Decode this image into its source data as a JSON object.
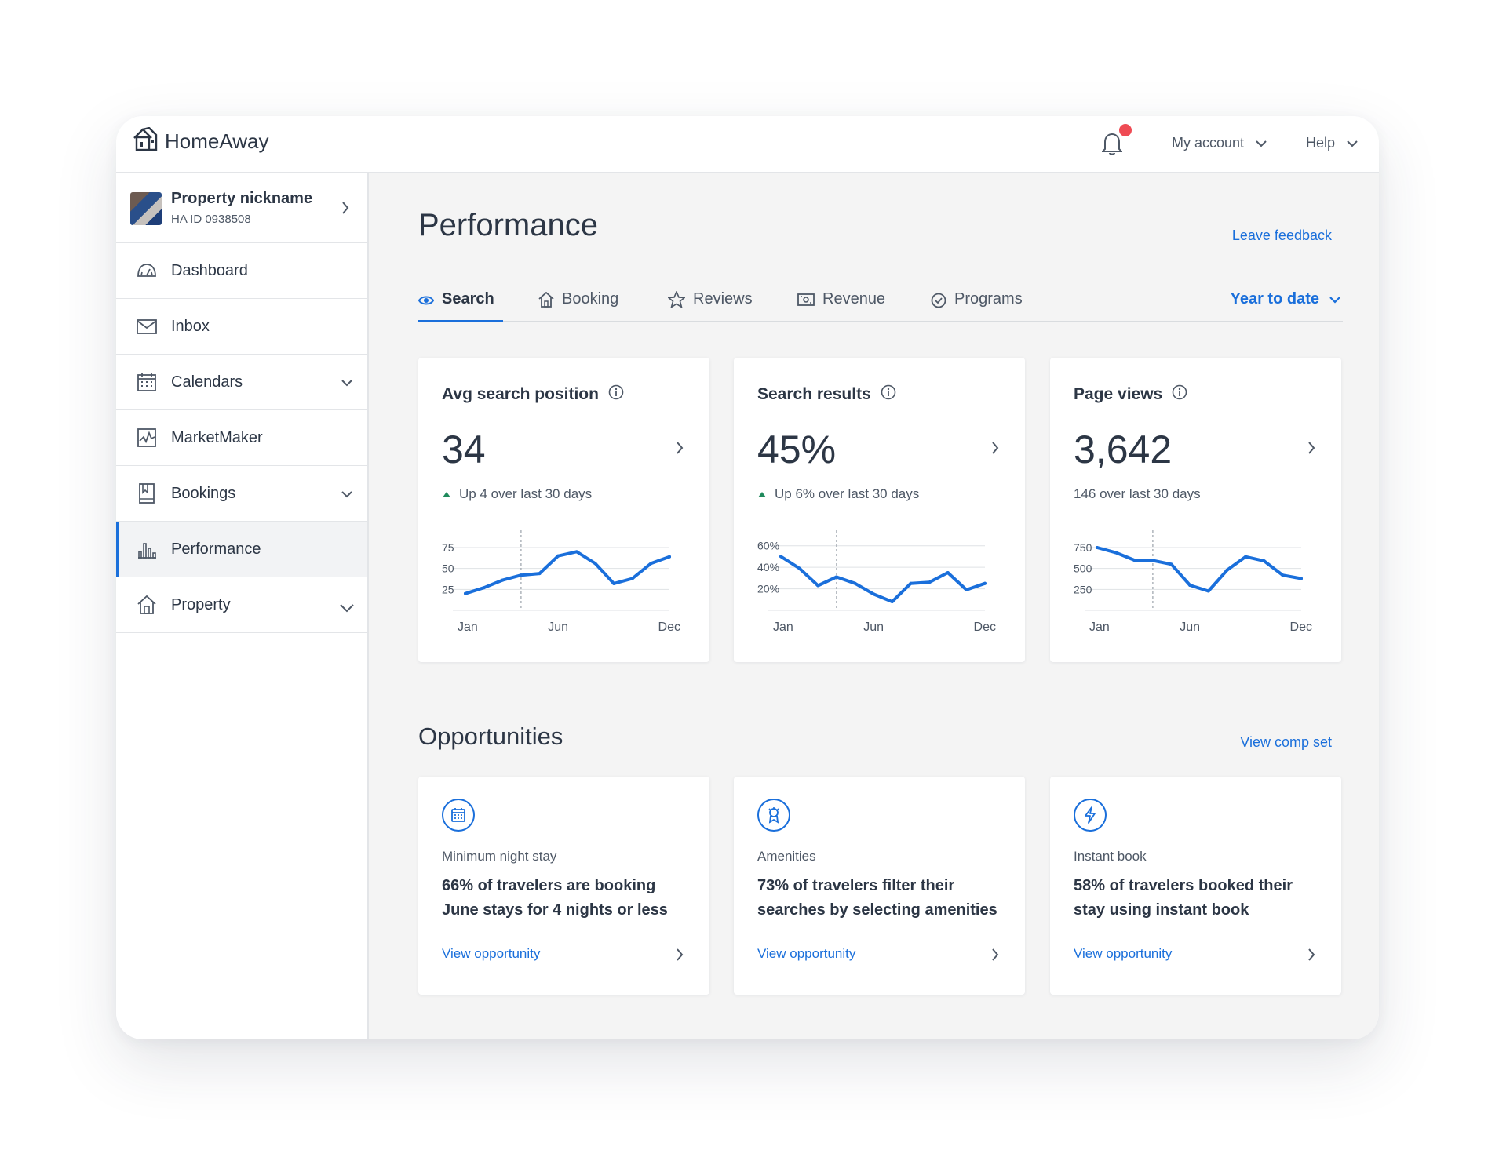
{
  "brand": {
    "name": "HomeAway",
    "accent": "#1a6fdb",
    "alert": "#ef4b54"
  },
  "header": {
    "account_label": "My account",
    "help_label": "Help",
    "icons": [
      "bell-icon",
      "chevron-down-icon"
    ]
  },
  "sidebar": {
    "property": {
      "name": "Property nickname",
      "id": "HA ID 0938508"
    },
    "items": [
      {
        "label": "Dashboard",
        "icon": "gauge-icon",
        "expandable": false,
        "active": false
      },
      {
        "label": "Inbox",
        "icon": "envelope-icon",
        "expandable": false,
        "active": false
      },
      {
        "label": "Calendars",
        "icon": "calendar-icon",
        "expandable": true,
        "active": false
      },
      {
        "label": "MarketMaker",
        "icon": "line-chart-icon",
        "expandable": false,
        "active": false
      },
      {
        "label": "Bookings",
        "icon": "book-icon",
        "expandable": true,
        "active": false
      },
      {
        "label": "Performance",
        "icon": "bar-chart-icon",
        "expandable": false,
        "active": true
      },
      {
        "label": "Property",
        "icon": "home-icon",
        "expandable": true,
        "active": false
      }
    ]
  },
  "main": {
    "title": "Performance",
    "feedback_link": "Leave feedback",
    "tabs": [
      {
        "label": "Search",
        "icon": "eye-icon",
        "active": true
      },
      {
        "label": "Booking",
        "icon": "home-icon",
        "active": false
      },
      {
        "label": "Reviews",
        "icon": "star-icon",
        "active": false
      },
      {
        "label": "Revenue",
        "icon": "money-icon",
        "active": false
      },
      {
        "label": "Programs",
        "icon": "check-circle-icon",
        "active": false
      }
    ],
    "range_selector": "Year to date",
    "metrics": [
      {
        "title": "Avg search position",
        "value": "34",
        "trend": "Up 4 over last 30 days",
        "trend_up": true
      },
      {
        "title": "Search results",
        "value": "45%",
        "trend": "Up 6% over last 30 days",
        "trend_up": true
      },
      {
        "title": "Page views",
        "value": "3,642",
        "trend": "146 over last 30 days",
        "trend_up": false
      }
    ],
    "opportunities_title": "Opportunities",
    "comp_set_link": "View comp set",
    "opportunities": [
      {
        "icon": "calendar-icon",
        "category": "Minimum night stay",
        "text": "66% of travelers are booking June stays for 4 nights or less",
        "link": "View opportunity"
      },
      {
        "icon": "ribbon-icon",
        "category": "Amenities",
        "text": "73% of travelers filter their searches by selecting amenities",
        "link": "View opportunity"
      },
      {
        "icon": "bolt-icon",
        "category": "Instant book",
        "text": "58% of travelers booked their stay using instant book",
        "link": "View opportunity"
      }
    ]
  },
  "chart_data": [
    {
      "type": "line",
      "title": "Avg search position",
      "x": [
        1,
        2,
        3,
        4,
        5,
        6,
        7,
        8,
        9,
        10,
        11,
        12
      ],
      "x_tick_labels": [
        "Jan",
        "Jun",
        "Dec"
      ],
      "x_ticks": [
        1,
        6,
        12
      ],
      "yticks": [
        25,
        50,
        75
      ],
      "ytick_labels": [
        "25",
        "50",
        "75"
      ],
      "ylim": [
        0,
        90
      ],
      "values": [
        20,
        27,
        36,
        42,
        44,
        65,
        70,
        56,
        32,
        38,
        56,
        64
      ],
      "marker_x": 4,
      "color": "#1a6fdb"
    },
    {
      "type": "line",
      "title": "Search results",
      "x": [
        1,
        2,
        3,
        4,
        5,
        6,
        7,
        8,
        9,
        10,
        11,
        12
      ],
      "x_tick_labels": [
        "Jan",
        "Jun",
        "Dec"
      ],
      "x_ticks": [
        1,
        6,
        12
      ],
      "yticks": [
        20,
        40,
        60
      ],
      "ytick_labels": [
        "20%",
        "40%",
        "60%"
      ],
      "ylim": [
        0,
        70
      ],
      "values": [
        50,
        39,
        23,
        31,
        25,
        15,
        8,
        25,
        26,
        35,
        19,
        25
      ],
      "marker_x": 4,
      "color": "#1a6fdb"
    },
    {
      "type": "line",
      "title": "Page views",
      "x": [
        1,
        2,
        3,
        4,
        5,
        6,
        7,
        8,
        9,
        10,
        11,
        12
      ],
      "x_tick_labels": [
        "Jan",
        "Jun",
        "Dec"
      ],
      "x_ticks": [
        1,
        6,
        12
      ],
      "yticks": [
        250,
        500,
        750
      ],
      "ytick_labels": [
        "250",
        "500",
        "750"
      ],
      "ylim": [
        0,
        900
      ],
      "values": [
        750,
        690,
        600,
        595,
        550,
        300,
        230,
        480,
        640,
        590,
        420,
        380
      ],
      "marker_x": 4,
      "color": "#1a6fdb"
    }
  ]
}
